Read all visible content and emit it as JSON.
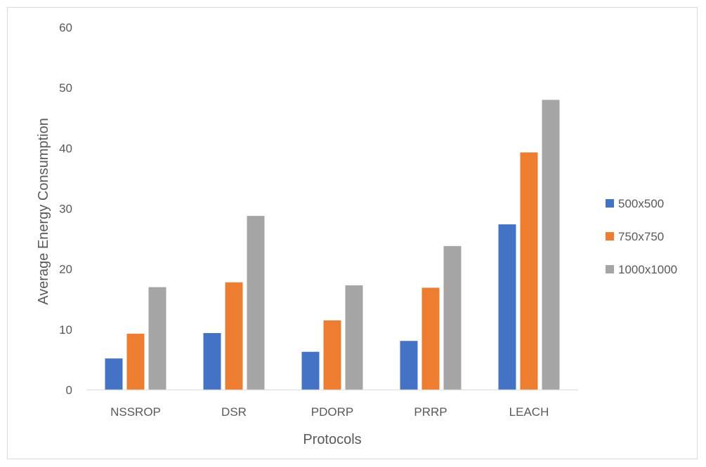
{
  "chart_data": {
    "type": "bar",
    "title": "",
    "xlabel": "Protocols",
    "ylabel": "Average Energy Consumption",
    "categories": [
      "NSSROP",
      "DSR",
      "PDORP",
      "PRRP",
      "LEACH"
    ],
    "series": [
      {
        "name": "500x500",
        "color": "#4472c4",
        "values": [
          5.2,
          9.4,
          6.3,
          8.1,
          27.4
        ]
      },
      {
        "name": "750x750",
        "color": "#ed7d31",
        "values": [
          9.3,
          17.8,
          11.5,
          16.9,
          39.3
        ]
      },
      {
        "name": "1000x1000",
        "color": "#a5a5a5",
        "values": [
          17.0,
          28.8,
          17.3,
          23.8,
          48.0
        ]
      }
    ],
    "ylim": [
      0,
      60
    ],
    "yticks": [
      "0",
      "10",
      "20",
      "30",
      "40",
      "50",
      "60"
    ],
    "grid": false,
    "legend": "right"
  }
}
